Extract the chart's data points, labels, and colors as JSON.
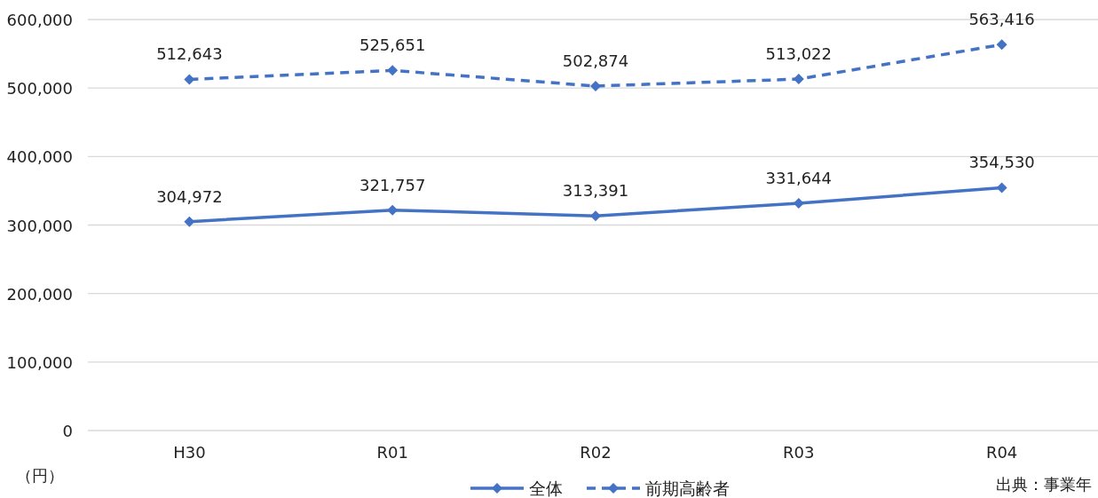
{
  "chart_data": {
    "type": "line",
    "ylabel": "（円）",
    "categories": [
      "H30",
      "R01",
      "R02",
      "R03",
      "R04"
    ],
    "series": [
      {
        "name": "全体",
        "color": "#4472c4",
        "line_style": "solid",
        "marker": "diamond",
        "values": [
          304972,
          321757,
          313391,
          331644,
          354530
        ],
        "value_labels": [
          "304,972",
          "321,757",
          "313,391",
          "331,644",
          "354,530"
        ]
      },
      {
        "name": "前期高齢者",
        "color": "#4472c4",
        "line_style": "dashed",
        "marker": "diamond",
        "values": [
          512643,
          525651,
          502874,
          513022,
          563416
        ],
        "value_labels": [
          "512,643",
          "525,651",
          "502,874",
          "513,022",
          "563,416"
        ]
      }
    ],
    "ylim": [
      0,
      600000
    ],
    "yticks": [
      0,
      {
        "value": 100000,
        "label": "100,000"
      },
      {
        "value": 200000,
        "label": "200,000"
      },
      {
        "value": 300000,
        "label": "300,000"
      },
      {
        "value": 400000,
        "label": "400,000"
      },
      {
        "value": 500000,
        "label": "500,000"
      },
      {
        "value": 600000,
        "label": "600,000"
      }
    ],
    "grid": "y",
    "legend": "bottom",
    "annotations": [
      "出典：事業年"
    ]
  }
}
